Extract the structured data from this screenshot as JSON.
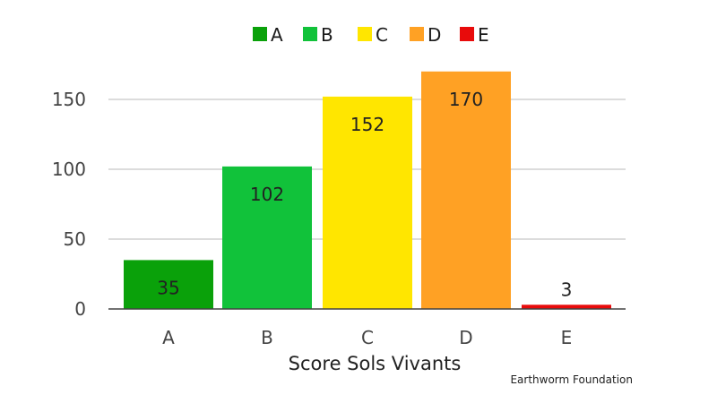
{
  "chart_data": {
    "type": "bar",
    "categories": [
      "A",
      "B",
      "C",
      "D",
      "E"
    ],
    "values": [
      35,
      102,
      152,
      170,
      3
    ],
    "colors": [
      "#0aa10a",
      "#11c23a",
      "#ffe600",
      "#ffa124",
      "#e80b0b"
    ],
    "legend": [
      "A",
      "B",
      "C",
      "D",
      "E"
    ],
    "legend_position": "top",
    "xlabel": "Score Sols Vivants",
    "ylabel": "",
    "yticks": [
      0,
      50,
      100,
      150
    ],
    "ylim": [
      0,
      170
    ],
    "grid": true,
    "source": "Earthworm Foundation"
  }
}
